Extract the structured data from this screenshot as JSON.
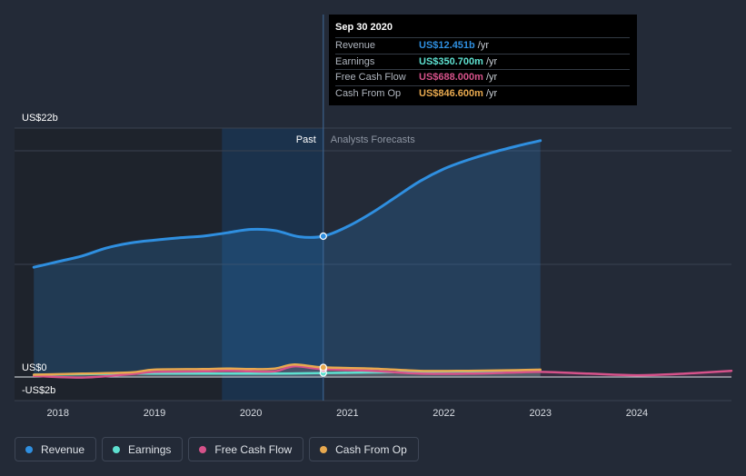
{
  "tooltip": {
    "date": "Sep 30 2020",
    "rows": [
      {
        "label": "Revenue",
        "value": "US$12.451b",
        "unit": "/yr",
        "color": "#2f8fe0"
      },
      {
        "label": "Earnings",
        "value": "US$350.700m",
        "unit": "/yr",
        "color": "#5ee0d0"
      },
      {
        "label": "Free Cash Flow",
        "value": "US$688.000m",
        "unit": "/yr",
        "color": "#d6528a"
      },
      {
        "label": "Cash From Op",
        "value": "US$846.600m",
        "unit": "/yr",
        "color": "#e8a94f"
      }
    ]
  },
  "legend": [
    {
      "label": "Revenue",
      "color": "#2f8fe0"
    },
    {
      "label": "Earnings",
      "color": "#5ee0d0"
    },
    {
      "label": "Free Cash Flow",
      "color": "#d6528a"
    },
    {
      "label": "Cash From Op",
      "color": "#e8a94f"
    }
  ],
  "chart_data": {
    "type": "area",
    "title": "",
    "xlabel": "",
    "ylabel": "",
    "y_tick_labels": [
      "US$22b",
      "US$0",
      "-US$2b"
    ],
    "x_tick_labels": [
      "2018",
      "2019",
      "2020",
      "2021",
      "2022",
      "2023",
      "2024"
    ],
    "xlim": [
      2017.55,
      2024.98
    ],
    "ylim": [
      -2,
      22
    ],
    "divider_x": 2020.75,
    "past_label": "Past",
    "forecast_label": "Analysts Forecasts",
    "highlight_year_range": [
      2019.7,
      2020.75
    ],
    "series": [
      {
        "name": "Revenue",
        "color": "#2f8fe0",
        "x": [
          2017.75,
          2018.0,
          2018.25,
          2018.5,
          2018.75,
          2019.0,
          2019.25,
          2019.5,
          2019.75,
          2020.0,
          2020.25,
          2020.5,
          2020.75,
          2021.0,
          2021.25,
          2021.5,
          2021.75,
          2022.0,
          2022.25,
          2022.5,
          2022.75,
          2023.0
        ],
        "values": [
          9.7,
          10.2,
          10.7,
          11.4,
          11.85,
          12.1,
          12.3,
          12.45,
          12.75,
          13.05,
          12.95,
          12.4,
          12.45,
          13.3,
          14.5,
          15.9,
          17.3,
          18.4,
          19.2,
          19.85,
          20.4,
          20.9
        ]
      },
      {
        "name": "Earnings",
        "color": "#5ee0d0",
        "x": [
          2017.75,
          2018.25,
          2018.75,
          2019.25,
          2019.75,
          2020.25,
          2020.5,
          2020.75,
          2021.25,
          2021.75,
          2022.25,
          2022.75,
          2023.0
        ],
        "values": [
          0.2,
          0.25,
          0.3,
          0.3,
          0.3,
          0.3,
          0.32,
          0.35,
          0.4,
          0.45,
          0.5,
          0.55,
          0.6
        ]
      },
      {
        "name": "Free Cash Flow",
        "color": "#d6528a",
        "x": [
          2017.75,
          2018.25,
          2018.75,
          2019.0,
          2019.5,
          2019.75,
          2020.0,
          2020.25,
          2020.45,
          2020.75,
          2021.25,
          2021.75,
          2022.25,
          2022.75,
          2023.0,
          2023.5,
          2024.0,
          2024.5,
          2024.98
        ],
        "values": [
          0.1,
          -0.05,
          0.25,
          0.45,
          0.5,
          0.55,
          0.5,
          0.5,
          0.95,
          0.69,
          0.55,
          0.3,
          0.3,
          0.4,
          0.45,
          0.3,
          0.15,
          0.3,
          0.55
        ]
      },
      {
        "name": "Cash From Op",
        "color": "#e8a94f",
        "x": [
          2017.75,
          2018.25,
          2018.75,
          2019.0,
          2019.5,
          2019.75,
          2020.0,
          2020.25,
          2020.45,
          2020.75,
          2021.25,
          2021.75,
          2022.25,
          2022.75,
          2023.0
        ],
        "values": [
          0.2,
          0.3,
          0.4,
          0.65,
          0.7,
          0.75,
          0.7,
          0.75,
          1.1,
          0.85,
          0.75,
          0.55,
          0.55,
          0.6,
          0.65
        ]
      }
    ]
  }
}
